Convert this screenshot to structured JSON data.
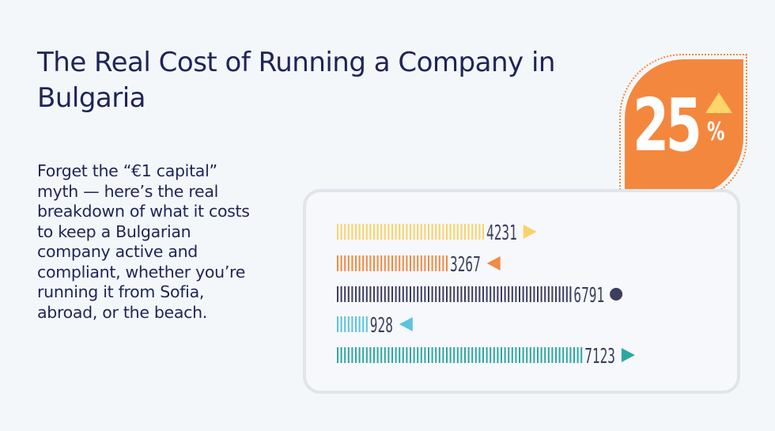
{
  "header": {
    "title": "The Real Cost of Running a Company in Bulgaria"
  },
  "intro": {
    "text": "Forget the “€1 capital” myth — here’s the real breakdown of what it costs to keep a Bulgarian company active and compliant, whether you’re running it from Sofia, abroad, or the beach."
  },
  "badge": {
    "value": "25",
    "unit": "%",
    "color": "#f4873e",
    "indicator_icon": "triangle-up-icon",
    "indicator_color": "#fdd66a"
  },
  "chart_data": {
    "type": "bar",
    "orientation": "horizontal",
    "values": [
      4231,
      3267,
      6791,
      928,
      7123
    ],
    "labels": [
      "4231",
      "3267",
      "6791",
      "928",
      "7123"
    ],
    "colors": [
      "#f8d36c",
      "#f08a44",
      "#3b3f5c",
      "#5bc4df",
      "#2ea7a1"
    ],
    "markers": [
      "triangle-right",
      "triangle-left",
      "circle",
      "triangle-left",
      "triangle-right"
    ]
  }
}
